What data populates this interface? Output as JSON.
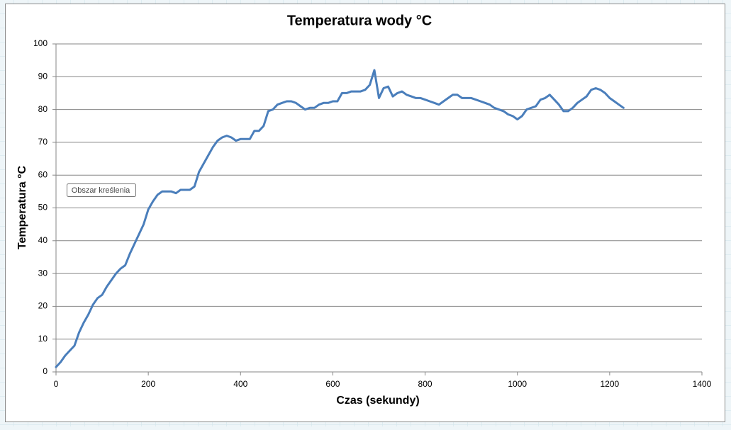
{
  "chart_data": {
    "type": "line",
    "title": "Temperatura wody °C",
    "x_label": "Czas (sekundy)",
    "y_label": "Temperatura °C",
    "tooltip": "Obszar kreślenia",
    "x": [
      0,
      10,
      20,
      30,
      40,
      50,
      60,
      70,
      80,
      90,
      100,
      110,
      120,
      130,
      140,
      150,
      160,
      170,
      180,
      190,
      200,
      210,
      220,
      230,
      240,
      250,
      260,
      270,
      280,
      290,
      300,
      310,
      320,
      330,
      340,
      350,
      360,
      370,
      380,
      390,
      400,
      410,
      420,
      430,
      440,
      450,
      460,
      470,
      480,
      490,
      500,
      510,
      520,
      530,
      540,
      550,
      560,
      570,
      580,
      590,
      600,
      610,
      620,
      630,
      640,
      650,
      660,
      670,
      680,
      690,
      700,
      710,
      720,
      730,
      740,
      750,
      760,
      770,
      780,
      790,
      800,
      810,
      820,
      830,
      840,
      850,
      860,
      870,
      880,
      890,
      900,
      910,
      920,
      930,
      940,
      950,
      960,
      970,
      980,
      990,
      1000,
      1010,
      1020,
      1030,
      1040,
      1050,
      1060,
      1070,
      1080,
      1090,
      1100,
      1110,
      1120,
      1130,
      1140,
      1150,
      1160,
      1170,
      1180,
      1190,
      1200,
      1210,
      1220,
      1230
    ],
    "series": [
      {
        "color": "#4a7ebb",
        "values": [
          1.5,
          3,
          5,
          6.5,
          8,
          12,
          15,
          17.5,
          20.5,
          22.5,
          23.5,
          26,
          28,
          30,
          31.5,
          32.5,
          36,
          39,
          42,
          45,
          49.5,
          52,
          54,
          55,
          55,
          55,
          54.5,
          55.5,
          55.5,
          55.5,
          56.5,
          61,
          63.5,
          66,
          68.5,
          70.5,
          71.5,
          72,
          71.5,
          70.5,
          71,
          71,
          71,
          73.5,
          73.5,
          75,
          79.5,
          80,
          81.5,
          82,
          82.5,
          82.5,
          82,
          81,
          80,
          80.5,
          80.5,
          81.5,
          82,
          82,
          82.5,
          82.5,
          85,
          85,
          85.5,
          85.5,
          85.5,
          86,
          87.5,
          92,
          83.5,
          86.5,
          87,
          84,
          85,
          85.5,
          84.5,
          84,
          83.5,
          83.5,
          83,
          82.5,
          82,
          81.5,
          82.5,
          83.5,
          84.5,
          84.5,
          83.5,
          83.5,
          83.5,
          83,
          82.5,
          82,
          81.5,
          80.5,
          80,
          79.5,
          78.5,
          78,
          77,
          78,
          80,
          80.5,
          81,
          83,
          83.5,
          84.5,
          83,
          81.5,
          79.5,
          79.5,
          80.5,
          82,
          83,
          84,
          86,
          86.5,
          86,
          85,
          83.5,
          82.5,
          81.5,
          80.5
        ]
      }
    ],
    "xlim": [
      0,
      1400
    ],
    "xticks": [
      0,
      200,
      400,
      600,
      800,
      1000,
      1200,
      1400
    ],
    "ylim": [
      0,
      100
    ],
    "yticks": [
      0,
      10,
      20,
      30,
      40,
      50,
      60,
      70,
      80,
      90,
      100
    ],
    "grid": true
  }
}
